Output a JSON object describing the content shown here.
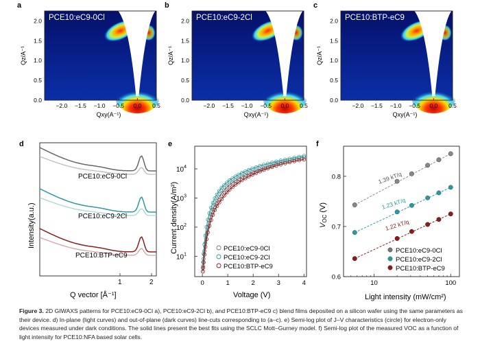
{
  "panels_top": [
    {
      "letter": "a",
      "title": "PCE10:eC9-0Cl"
    },
    {
      "letter": "b",
      "title": "PCE10:eC9-2Cl"
    },
    {
      "letter": "c",
      "title": "PCE10:BTP-eC9"
    }
  ],
  "giwaxs_axes": {
    "ylabel": "Qz/A⁻¹",
    "xlabel": "Qxy(A⁻¹)",
    "yticks": [
      "0.0",
      "0.5",
      "1.0",
      "1.5",
      "2.0"
    ],
    "xticks": [
      "−2.0",
      "−1.5",
      "−1.0",
      "−0.5",
      "0.0",
      "0.5"
    ]
  },
  "panel_d": {
    "letter": "d",
    "ylabel": "Intensity(a.u.)",
    "xlabel": "Q vector [Å⁻¹]",
    "xticks": [
      "1",
      "2"
    ],
    "curve_labels": [
      "PCE10:eC9-0Cl",
      "PCE10:eC9-2Cl",
      "PCE10:BTP-eC9"
    ]
  },
  "panel_e": {
    "letter": "e",
    "ylabel": "Current density(A/m²)",
    "xlabel": "Voltage (V)",
    "xticks": [
      "0",
      "1",
      "2",
      "3",
      "4"
    ],
    "ytick_base": "10",
    "ytick_exps": [
      "1",
      "2",
      "3",
      "4"
    ],
    "legend": [
      "PCE10:eC9-0Cl",
      "PCE10:eC9-2Cl",
      "PCE10:BTP-eC9"
    ]
  },
  "panel_f": {
    "letter": "f",
    "ylabel": "V",
    "ylabel_sub": "OC",
    "ylabel_unit": " (V)",
    "xlabel": "Light intensity (mW/cm²)",
    "xticks": [
      "10",
      "100"
    ],
    "yticks": [
      "0.6",
      "0.7",
      "0.8"
    ],
    "slope_labels": [
      "1.39 kT/q",
      "1.23 kT/q",
      "1.22 kT/q"
    ],
    "legend": [
      "PCE10:eC9-0Cl",
      "PCE10:eC9-2Cl",
      "PCE10:BTP-eC9"
    ]
  },
  "colors": {
    "gray_dark": "#666666",
    "gray_light": "#bbbbbb",
    "teal_dark": "#2a9aa0",
    "teal_light": "#a8d6d8",
    "red_dark": "#8b1c1c",
    "red_light": "#d9a0a0"
  },
  "caption": {
    "label": "Figure 3.",
    "text": "2D GIWAXS patterns for PCE10:eC9-0Cl a), PCE10:eC9-2Cl b), and PCE10:BTP-eC9 c) blend films deposited on a silicon wafer using the same parameters as their device. d) In-plane (light curves) and out-of-plane (dark curves) line-cuts corresponding to (a–c). e) Semi-log plot of J–V characteristics (circle) for electron-only devices measured under dark conditions. The solid lines present the best fits using the SCLC Mott–Gurney model. f) Semi-log plot of the measured VOC as a function of light intensity for PCE10:NFA based solar cells."
  },
  "chart_data": [
    {
      "type": "line",
      "title": "d",
      "xlabel": "Q vector [Å⁻¹]",
      "ylabel": "Intensity(a.u.)",
      "x": [
        0.25,
        0.5,
        1.0,
        1.5,
        1.75,
        2.0,
        2.2
      ],
      "series": [
        {
          "name": "PCE10:eC9-0Cl out-of-plane",
          "values": [
            1.0,
            0.55,
            0.45,
            0.55,
            1.0,
            0.35,
            0.3
          ]
        },
        {
          "name": "PCE10:eC9-0Cl in-plane",
          "values": [
            0.9,
            0.3,
            0.2,
            0.25,
            0.45,
            0.2,
            0.18
          ]
        },
        {
          "name": "PCE10:eC9-2Cl out-of-plane",
          "values": [
            1.0,
            0.5,
            0.35,
            0.45,
            0.95,
            0.35,
            0.3
          ]
        },
        {
          "name": "PCE10:eC9-2Cl in-plane",
          "values": [
            0.9,
            0.25,
            0.15,
            0.2,
            0.4,
            0.15,
            0.15
          ]
        },
        {
          "name": "PCE10:BTP-eC9 out-of-plane",
          "values": [
            1.0,
            0.5,
            0.35,
            0.45,
            0.95,
            0.4,
            0.35
          ]
        },
        {
          "name": "PCE10:BTP-eC9 in-plane",
          "values": [
            0.8,
            0.3,
            0.15,
            0.2,
            0.5,
            0.15,
            0.15
          ]
        }
      ]
    },
    {
      "type": "scatter",
      "title": "e",
      "xlabel": "Voltage (V)",
      "ylabel": "Current density(A/m²)",
      "yscale": "log",
      "xlim": [
        -0.3,
        4.1
      ],
      "ylim": [
        2,
        60000
      ],
      "x": [
        0.02,
        0.05,
        0.1,
        0.2,
        0.3,
        0.5,
        0.75,
        1.0,
        1.5,
        2.0,
        2.5,
        3.0,
        3.5,
        4.0
      ],
      "series": [
        {
          "name": "PCE10:eC9-0Cl",
          "values": [
            3,
            8,
            20,
            80,
            200,
            600,
            1400,
            2500,
            5000,
            8000,
            11500,
            15500,
            20000,
            25000
          ]
        },
        {
          "name": "PCE10:eC9-2Cl",
          "values": [
            4,
            12,
            35,
            150,
            350,
            1000,
            2200,
            3600,
            6800,
            10500,
            14500,
            18500,
            23000,
            28000
          ]
        },
        {
          "name": "PCE10:BTP-eC9",
          "values": [
            3,
            6,
            15,
            55,
            130,
            400,
            900,
            1700,
            3800,
            6500,
            9800,
            13500,
            17500,
            21000
          ]
        }
      ]
    },
    {
      "type": "scatter",
      "title": "f",
      "xlabel": "Light intensity (mW/cm²)",
      "ylabel": "VOC (V)",
      "xscale": "log",
      "xlim": [
        4,
        130
      ],
      "ylim": [
        0.6,
        0.86
      ],
      "x": [
        5.6,
        20,
        31,
        50,
        70,
        100
      ],
      "series": [
        {
          "name": "PCE10:eC9-0Cl",
          "slope_label": "1.39 kT/q",
          "values": [
            0.743,
            0.79,
            0.805,
            0.822,
            0.833,
            0.845
          ]
        },
        {
          "name": "PCE10:eC9-2Cl",
          "slope_label": "1.23 kT/q",
          "values": [
            0.688,
            0.729,
            0.742,
            0.757,
            0.767,
            0.778
          ]
        },
        {
          "name": "PCE10:BTP-eC9",
          "slope_label": "1.22 kT/q",
          "values": [
            0.636,
            0.676,
            0.69,
            0.704,
            0.714,
            0.725
          ]
        }
      ]
    }
  ]
}
